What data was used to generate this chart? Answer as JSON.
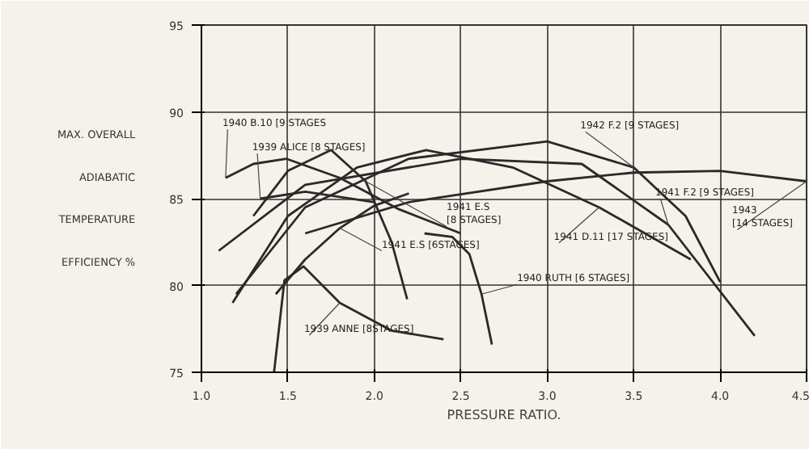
{
  "chart_data": {
    "type": "line",
    "xlabel": "PRESSURE RATIO.",
    "ylabel": "MAX. OVERALL\nADIABATIC\nTEMPERATURE\nEFFICIENCY %",
    "xlim": [
      1.0,
      4.5
    ],
    "ylim": [
      75,
      95
    ],
    "xticks": [
      {
        "value": 1.0,
        "label": "1.0"
      },
      {
        "value": 1.5,
        "label": "1.5"
      },
      {
        "value": 2.0,
        "label": "2.0"
      },
      {
        "value": 2.5,
        "label": "2.5"
      },
      {
        "value": 3.0,
        "label": "3.0"
      },
      {
        "value": 3.5,
        "label": "3.5"
      },
      {
        "value": 4.0,
        "label": "4.0"
      },
      {
        "value": 4.5,
        "label": "4.5"
      }
    ],
    "yticks": [
      75,
      80,
      85,
      90,
      95
    ],
    "grid": true,
    "marker": "none",
    "line_style": "solid",
    "series": [
      {
        "color": "#2a2a2a",
        "x": [
          1.14,
          1.3,
          1.49,
          1.8,
          2.14,
          2.5
        ],
        "values": [
          86.2,
          87.0,
          87.3,
          86.2,
          84.4,
          83.0
        ]
      },
      {
        "color": "#2a2a2a",
        "x": [
          1.34,
          1.6,
          2.0
        ],
        "values": [
          85.0,
          85.4,
          84.8
        ]
      },
      {
        "color": "#2a2a2a",
        "x": [
          1.42,
          1.48,
          1.59,
          1.8,
          2.1,
          2.4
        ],
        "values": [
          75.0,
          80.3,
          81.1,
          79.0,
          77.4,
          76.9
        ]
      },
      {
        "color": "#2a2a2a",
        "x": [
          2.29,
          2.45,
          2.55,
          2.62,
          2.68
        ],
        "values": [
          83.0,
          82.8,
          81.8,
          79.5,
          76.6
        ]
      },
      {
        "color": "#2a2a2a",
        "x": [
          1.3,
          1.5,
          1.75,
          1.95,
          2.1,
          2.19
        ],
        "values": [
          84.0,
          86.6,
          87.8,
          86.0,
          82.5,
          79.2
        ]
      },
      {
        "color": "#2a2a2a",
        "x": [
          1.43,
          1.6,
          1.8,
          2.0,
          2.2
        ],
        "values": [
          79.5,
          81.5,
          83.3,
          84.6,
          85.3
        ]
      },
      {
        "color": "#2a2a2a",
        "x": [
          1.18,
          1.5,
          1.9,
          2.3,
          2.8,
          3.3,
          3.83
        ],
        "values": [
          79.0,
          84.0,
          86.8,
          87.8,
          86.8,
          84.5,
          81.5
        ]
      },
      {
        "color": "#2a2a2a",
        "x": [
          1.2,
          1.6,
          2.2,
          3.0,
          3.5,
          3.8,
          4.0
        ],
        "values": [
          79.5,
          84.5,
          87.3,
          88.3,
          86.8,
          84.0,
          80.2
        ]
      },
      {
        "color": "#2a2a2a",
        "x": [
          1.1,
          1.6,
          2.5,
          3.2,
          3.7,
          4.2
        ],
        "values": [
          82.0,
          85.8,
          87.3,
          87.0,
          83.5,
          77.1
        ]
      },
      {
        "color": "#2a2a2a",
        "x": [
          1.6,
          2.2,
          3.0,
          3.5,
          4.0,
          4.5
        ],
        "values": [
          83.0,
          84.8,
          86.0,
          86.5,
          86.6,
          86.0
        ]
      }
    ],
    "annotations": [
      {
        "text": "1940 B.10 [9 STAGES",
        "x": 1.14,
        "y": 86.2
      },
      {
        "text": "1939 ALICE  [8 STAGES]",
        "x": 1.34,
        "y": 85.0
      },
      {
        "text": "1941 E.S\n[8 STAGES]",
        "x": 1.95,
        "y": 86.0
      },
      {
        "text": "1941 E.S [6STAGES]",
        "x": 1.8,
        "y": 83.3
      },
      {
        "text": "1939 ANNE [8STAGES]",
        "x": 1.8,
        "y": 79.0
      },
      {
        "text": "1941  D.11 [17 STAGES]",
        "x": 3.3,
        "y": 84.5
      },
      {
        "text": "1940 RUTH [6 STAGES]",
        "x": 2.62,
        "y": 79.5
      },
      {
        "text": "1942 F.2 [9 STAGES]",
        "x": 3.5,
        "y": 86.8
      },
      {
        "text": "1941 F.2 [9 STAGES]",
        "x": 3.7,
        "y": 83.5
      },
      {
        "text": "1943\n[14 STAGES]",
        "x": 4.5,
        "y": 86.0
      }
    ]
  }
}
